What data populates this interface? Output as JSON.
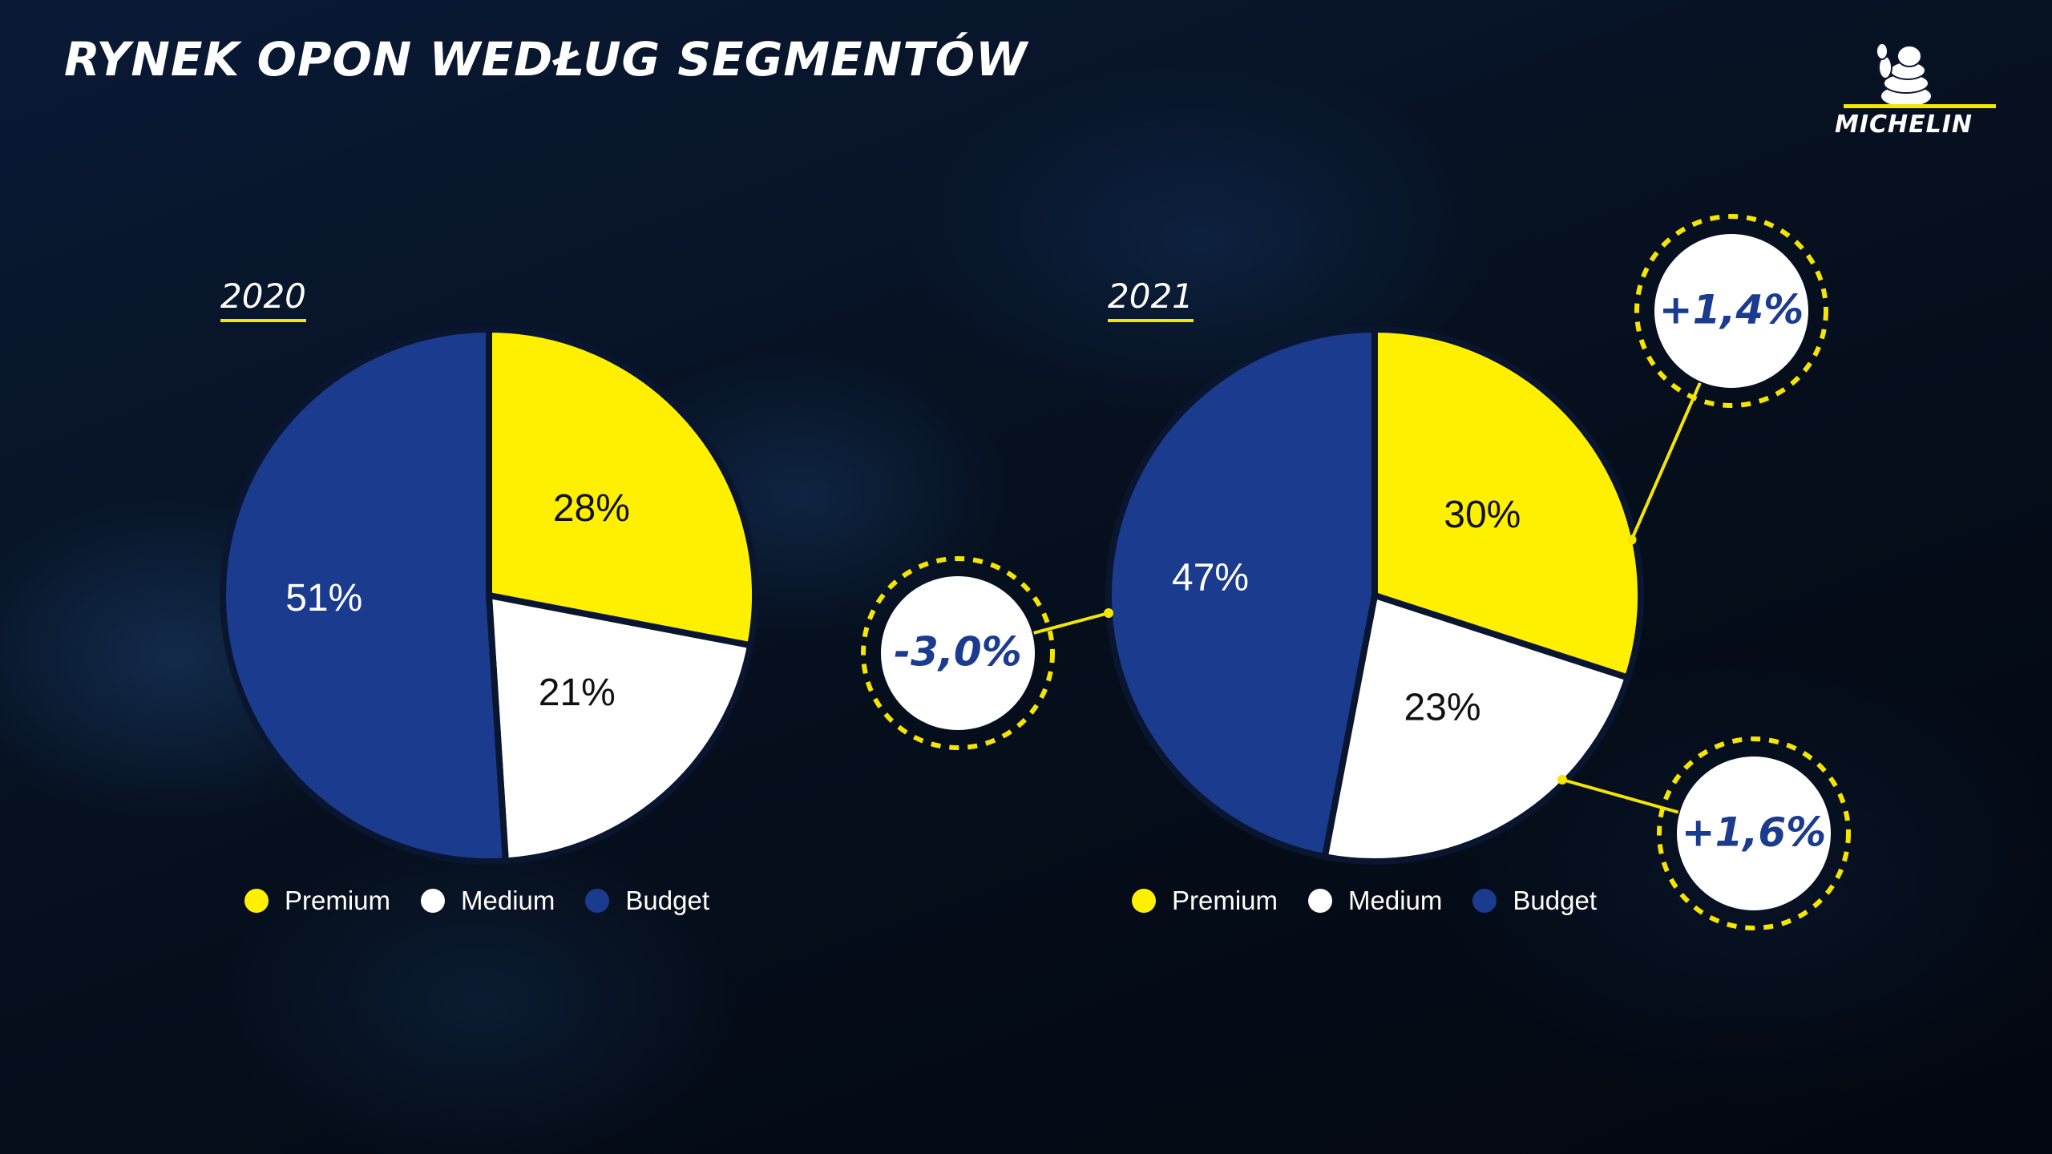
{
  "title": "RYNEK OPON WEDŁUG SEGMENTÓW",
  "logo": {
    "text": "MICHELIN"
  },
  "colors": {
    "premium": "#fff000",
    "medium": "#ffffff",
    "budget": "#1b3b8f",
    "accent": "#f5e600",
    "change_text": "#1b3b8f"
  },
  "chart_data": [
    {
      "type": "pie",
      "title": "2020",
      "categories": [
        "Premium",
        "Medium",
        "Budget"
      ],
      "values": [
        28,
        21,
        51
      ],
      "labels": [
        "28%",
        "21%",
        "51%"
      ],
      "legend": "bottom"
    },
    {
      "type": "pie",
      "title": "2021",
      "categories": [
        "Premium",
        "Medium",
        "Budget"
      ],
      "values": [
        30,
        23,
        47
      ],
      "labels": [
        "30%",
        "23%",
        "47%"
      ],
      "legend": "bottom",
      "annotations": [
        {
          "segment": "Premium",
          "text": "+1,4%"
        },
        {
          "segment": "Medium",
          "text": "+1,6%"
        },
        {
          "segment": "Budget",
          "text": "-3,0%"
        }
      ]
    }
  ]
}
